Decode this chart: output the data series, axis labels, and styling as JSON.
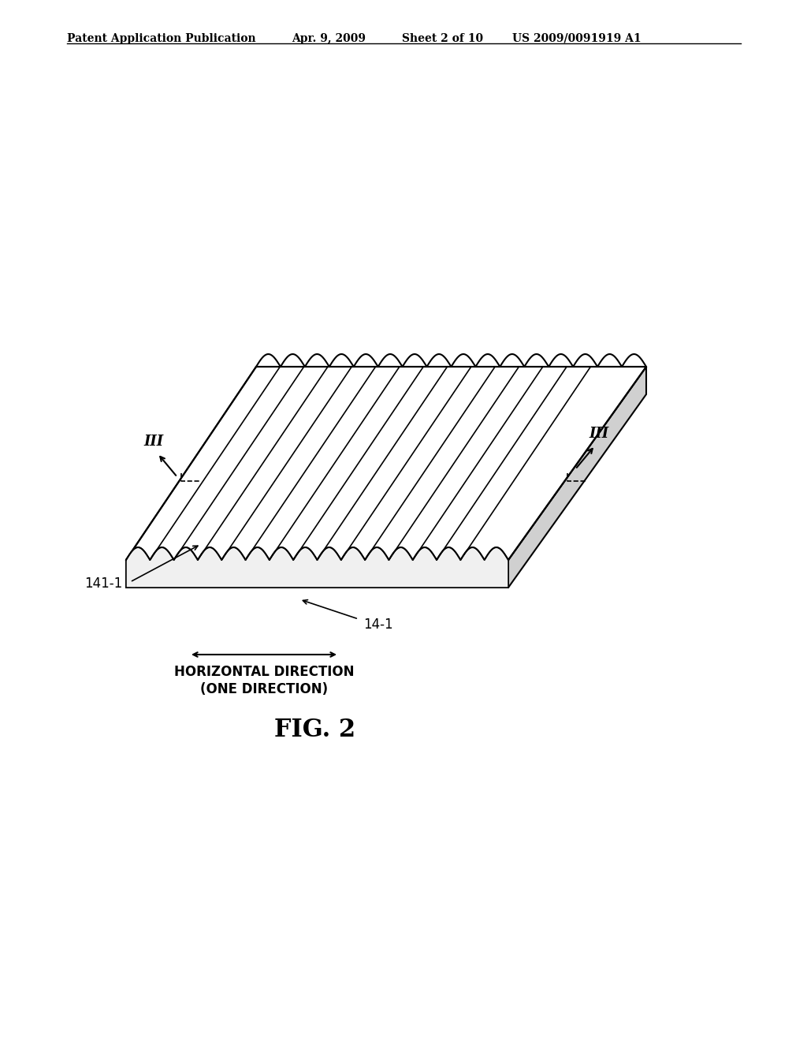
{
  "bg_color": "#ffffff",
  "line_color": "#000000",
  "header_text": "Patent Application Publication",
  "header_date": "Apr. 9, 2009",
  "header_sheet": "Sheet 2 of 10",
  "header_patent": "US 2009/0091919 A1",
  "figure_label": "FIG. 2",
  "label_141": "141-1",
  "label_14": "14-1",
  "label_roman": "III",
  "label_horiz1": "HORIZONTAL DIRECTION",
  "label_horiz2": "(ONE DIRECTION)",
  "num_ridges": 15,
  "plate_color": "#ffffff",
  "plate_line_color": "#000000"
}
